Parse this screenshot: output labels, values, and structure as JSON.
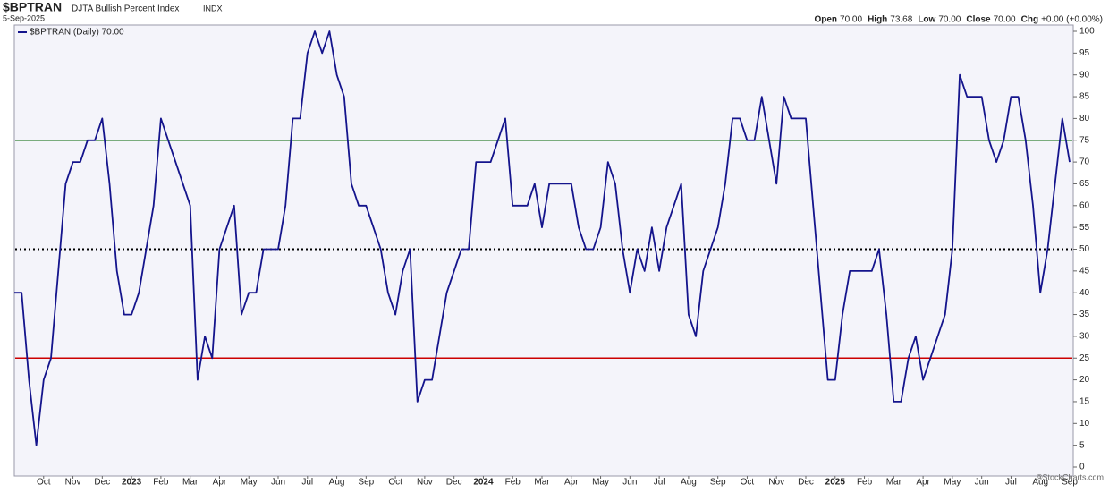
{
  "header": {
    "symbol": "$BPTRAN",
    "name": "DJTA Bullish Percent Index",
    "exchange": "INDX",
    "date": "5-Sep-2025",
    "quote": [
      {
        "label": "Open",
        "value": "70.00"
      },
      {
        "label": "High",
        "value": "73.68"
      },
      {
        "label": "Low",
        "value": "70.00"
      },
      {
        "label": "Close",
        "value": "70.00"
      },
      {
        "label": "Chg",
        "value": "+0.00 (+0.00%)"
      }
    ],
    "watermark": "©StockCharts.com"
  },
  "chart_data": {
    "type": "line",
    "categories": [
      null,
      null,
      null,
      null,
      "Oct",
      null,
      null,
      null,
      "Nov",
      null,
      null,
      null,
      "Dec",
      null,
      null,
      null,
      "2023",
      null,
      null,
      null,
      "Feb",
      null,
      null,
      null,
      "Mar",
      null,
      null,
      null,
      "Apr",
      null,
      null,
      null,
      "May",
      null,
      null,
      null,
      "Jun",
      null,
      null,
      null,
      "Jul",
      null,
      null,
      null,
      "Aug",
      null,
      null,
      null,
      "Sep",
      null,
      null,
      null,
      "Oct",
      null,
      null,
      null,
      "Nov",
      null,
      null,
      null,
      "Dec",
      null,
      null,
      null,
      "2024",
      null,
      null,
      null,
      "Feb",
      null,
      null,
      null,
      "Mar",
      null,
      null,
      null,
      "Apr",
      null,
      null,
      null,
      "May",
      null,
      null,
      null,
      "Jun",
      null,
      null,
      null,
      "Jul",
      null,
      null,
      null,
      "Aug",
      null,
      null,
      null,
      "Sep",
      null,
      null,
      null,
      "Oct",
      null,
      null,
      null,
      "Nov",
      null,
      null,
      null,
      "Dec",
      null,
      null,
      null,
      "2025",
      null,
      null,
      null,
      "Feb",
      null,
      null,
      null,
      "Mar",
      null,
      null,
      null,
      "Apr",
      null,
      null,
      null,
      "May",
      null,
      null,
      null,
      "Jun",
      null,
      null,
      null,
      "Jul",
      null,
      null,
      null,
      "Aug",
      null,
      null,
      null,
      "Sep"
    ],
    "series": [
      {
        "name": "$BPTRAN (Daily) 70.00",
        "color": "#14148c",
        "values": [
          40,
          40,
          20,
          5,
          20,
          25,
          45,
          65,
          70,
          70,
          75,
          75,
          80,
          65,
          45,
          35,
          35,
          40,
          50,
          60,
          80,
          75,
          70,
          65,
          60,
          20,
          30,
          25,
          50,
          55,
          60,
          35,
          40,
          40,
          50,
          50,
          50,
          60,
          80,
          80,
          95,
          100,
          95,
          100,
          90,
          85,
          65,
          60,
          60,
          55,
          50,
          40,
          35,
          45,
          50,
          15,
          20,
          20,
          30,
          40,
          45,
          50,
          50,
          70,
          70,
          70,
          75,
          80,
          60,
          60,
          60,
          65,
          55,
          65,
          65,
          65,
          65,
          55,
          50,
          50,
          55,
          70,
          65,
          50,
          40,
          50,
          45,
          55,
          45,
          55,
          60,
          65,
          35,
          30,
          45,
          50,
          55,
          65,
          80,
          80,
          75,
          75,
          85,
          75,
          65,
          85,
          80,
          80,
          80,
          60,
          40,
          20,
          20,
          35,
          45,
          45,
          45,
          45,
          50,
          35,
          15,
          15,
          25,
          30,
          20,
          25,
          30,
          35,
          50,
          90,
          85,
          85,
          85,
          75,
          70,
          75,
          85,
          85,
          75,
          60,
          40,
          50,
          65,
          80,
          70
        ]
      }
    ],
    "reference_lines": [
      {
        "value": 75,
        "color": "#006400",
        "style": "solid"
      },
      {
        "value": 50,
        "color": "#000000",
        "style": "dotted"
      },
      {
        "value": 25,
        "color": "#cc0000",
        "style": "solid"
      }
    ],
    "ylim": [
      0,
      100
    ],
    "yticks": [
      0,
      5,
      10,
      15,
      20,
      25,
      30,
      35,
      40,
      45,
      50,
      55,
      60,
      65,
      70,
      75,
      80,
      85,
      90,
      95,
      100
    ]
  }
}
